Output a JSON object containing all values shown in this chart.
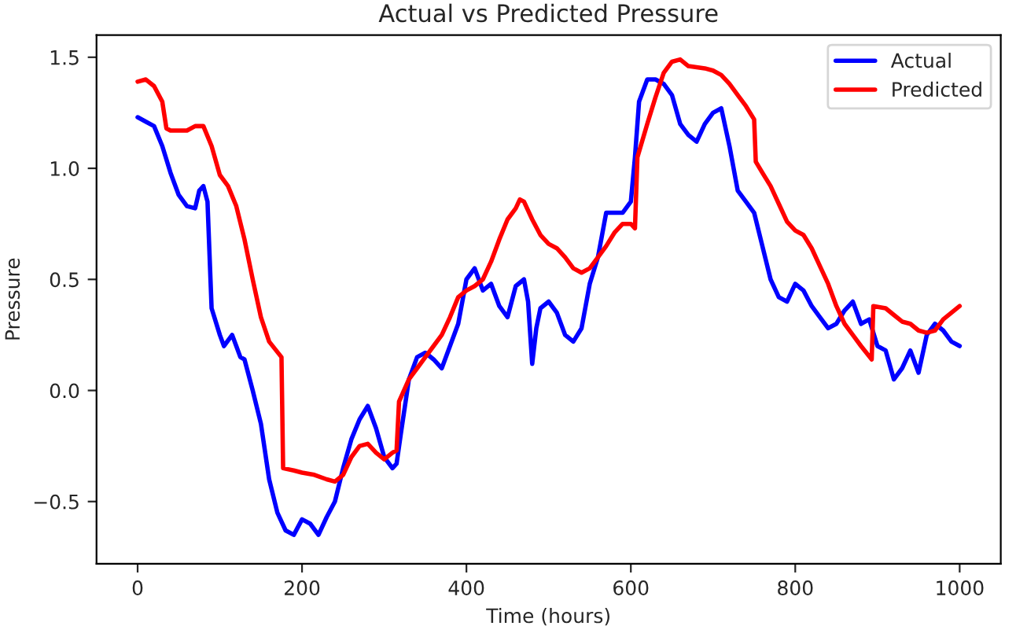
{
  "chart_data": {
    "type": "line",
    "title": "Actual vs Predicted Pressure",
    "xlabel": "Time (hours)",
    "ylabel": "Pressure",
    "xlim": [
      -50,
      1050
    ],
    "ylim": [
      -0.78,
      1.6
    ],
    "xticks": [
      0,
      200,
      400,
      600,
      800,
      1000
    ],
    "yticks": [
      {
        "value": -0.5,
        "label": "−0.5"
      },
      {
        "value": 0.0,
        "label": "0.0"
      },
      {
        "value": 0.5,
        "label": "0.5"
      },
      {
        "value": 1.0,
        "label": "1.0"
      },
      {
        "value": 1.5,
        "label": "1.5"
      }
    ],
    "grid": false,
    "legend": "top right",
    "marker": "none",
    "line_style": "solid",
    "series": [
      {
        "name": "Actual",
        "color": "#0000ff",
        "x": [
          0,
          10,
          20,
          30,
          40,
          50,
          60,
          70,
          75,
          80,
          85,
          90,
          100,
          105,
          115,
          120,
          125,
          130,
          140,
          150,
          160,
          170,
          180,
          190,
          200,
          210,
          220,
          230,
          240,
          250,
          260,
          270,
          280,
          290,
          300,
          310,
          315,
          320,
          330,
          340,
          350,
          360,
          370,
          380,
          390,
          400,
          410,
          420,
          430,
          440,
          450,
          460,
          470,
          475,
          480,
          485,
          490,
          500,
          510,
          520,
          530,
          540,
          550,
          560,
          570,
          580,
          590,
          600,
          605,
          610,
          620,
          630,
          640,
          650,
          660,
          670,
          680,
          690,
          700,
          710,
          720,
          730,
          740,
          750,
          760,
          770,
          780,
          790,
          800,
          810,
          820,
          830,
          840,
          850,
          860,
          870,
          880,
          890,
          900,
          910,
          920,
          930,
          940,
          950,
          960,
          970,
          980,
          990,
          1000
        ],
        "values": [
          1.23,
          1.21,
          1.19,
          1.1,
          0.98,
          0.88,
          0.83,
          0.82,
          0.9,
          0.92,
          0.85,
          0.37,
          0.25,
          0.2,
          0.25,
          0.2,
          0.15,
          0.14,
          0.0,
          -0.15,
          -0.4,
          -0.55,
          -0.63,
          -0.65,
          -0.58,
          -0.6,
          -0.65,
          -0.57,
          -0.5,
          -0.35,
          -0.22,
          -0.13,
          -0.07,
          -0.17,
          -0.3,
          -0.35,
          -0.33,
          -0.2,
          0.05,
          0.15,
          0.17,
          0.14,
          0.1,
          0.2,
          0.3,
          0.5,
          0.55,
          0.45,
          0.48,
          0.38,
          0.33,
          0.47,
          0.5,
          0.4,
          0.12,
          0.28,
          0.37,
          0.4,
          0.35,
          0.25,
          0.22,
          0.28,
          0.48,
          0.6,
          0.8,
          0.8,
          0.8,
          0.85,
          1.05,
          1.3,
          1.4,
          1.4,
          1.38,
          1.33,
          1.2,
          1.15,
          1.12,
          1.2,
          1.25,
          1.27,
          1.1,
          0.9,
          0.85,
          0.8,
          0.65,
          0.5,
          0.42,
          0.4,
          0.48,
          0.45,
          0.38,
          0.33,
          0.28,
          0.3,
          0.36,
          0.4,
          0.3,
          0.32,
          0.2,
          0.18,
          0.05,
          0.1,
          0.18,
          0.08,
          0.25,
          0.3,
          0.27,
          0.22,
          0.2
        ]
      },
      {
        "name": "Predicted",
        "color": "#ff0000",
        "x": [
          0,
          10,
          20,
          30,
          35,
          40,
          60,
          70,
          80,
          90,
          100,
          110,
          120,
          130,
          140,
          150,
          160,
          175,
          177,
          190,
          200,
          215,
          230,
          240,
          250,
          260,
          270,
          280,
          290,
          300,
          310,
          315,
          318,
          330,
          340,
          350,
          360,
          370,
          380,
          390,
          400,
          410,
          420,
          430,
          440,
          450,
          460,
          465,
          470,
          480,
          490,
          500,
          510,
          520,
          530,
          540,
          550,
          560,
          570,
          580,
          590,
          600,
          605,
          608,
          620,
          630,
          640,
          650,
          660,
          670,
          690,
          700,
          710,
          720,
          730,
          740,
          750,
          752,
          760,
          770,
          780,
          790,
          800,
          810,
          820,
          830,
          840,
          850,
          860,
          870,
          880,
          893,
          895,
          910,
          920,
          930,
          940,
          950,
          960,
          970,
          980,
          990,
          1000
        ],
        "values": [
          1.39,
          1.4,
          1.37,
          1.3,
          1.18,
          1.17,
          1.17,
          1.19,
          1.19,
          1.1,
          0.97,
          0.92,
          0.83,
          0.68,
          0.5,
          0.33,
          0.22,
          0.15,
          -0.35,
          -0.36,
          -0.37,
          -0.38,
          -0.4,
          -0.41,
          -0.38,
          -0.3,
          -0.25,
          -0.24,
          -0.28,
          -0.31,
          -0.28,
          -0.27,
          -0.05,
          0.05,
          0.1,
          0.15,
          0.2,
          0.25,
          0.33,
          0.42,
          0.45,
          0.47,
          0.5,
          0.58,
          0.68,
          0.77,
          0.82,
          0.86,
          0.85,
          0.77,
          0.7,
          0.66,
          0.64,
          0.6,
          0.55,
          0.53,
          0.55,
          0.6,
          0.65,
          0.71,
          0.75,
          0.75,
          0.73,
          1.05,
          1.2,
          1.32,
          1.43,
          1.48,
          1.49,
          1.46,
          1.45,
          1.44,
          1.42,
          1.38,
          1.33,
          1.28,
          1.22,
          1.03,
          0.98,
          0.92,
          0.84,
          0.76,
          0.72,
          0.7,
          0.64,
          0.56,
          0.48,
          0.38,
          0.3,
          0.25,
          0.2,
          0.14,
          0.38,
          0.37,
          0.34,
          0.31,
          0.3,
          0.27,
          0.26,
          0.27,
          0.32,
          0.35,
          0.38
        ]
      }
    ]
  }
}
